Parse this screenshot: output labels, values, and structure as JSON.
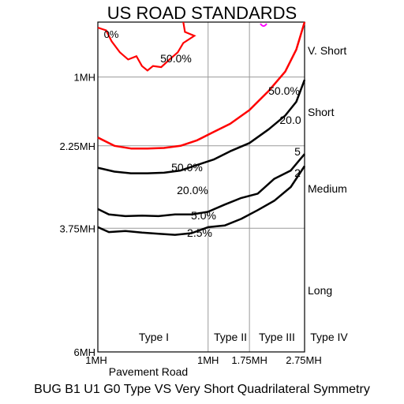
{
  "title": "US ROAD STANDARDS",
  "caption": "BUG B1 U1 G0 Type VS Very Short Quadrilateral Symmetry",
  "chart_data": {
    "type": "line",
    "xlabel": "Pavement   Road",
    "x_ticks": [
      "1MH",
      "1MH",
      "1.75MH",
      "2.75MH"
    ],
    "x_tick_values": [
      -1,
      1,
      1.75,
      2.75
    ],
    "y_ticks": [
      "1MH",
      "2.25MH",
      "3.75MH",
      "6MH"
    ],
    "y_tick_values": [
      1,
      2.25,
      3.75,
      6
    ],
    "xlim": [
      -1,
      2.75
    ],
    "ylim": [
      0,
      6
    ],
    "grid": true,
    "type_labels": [
      "Type I",
      "Type II",
      "Type III",
      "Type IV"
    ],
    "distance_labels": [
      "V. Short",
      "Short",
      "Medium",
      "Long"
    ],
    "contours": [
      {
        "label": "50.0%",
        "color": "#ff0000",
        "points": [
          [
            -1,
            2.1
          ],
          [
            -0.7,
            2.25
          ],
          [
            -0.4,
            2.3
          ],
          [
            -0.1,
            2.3
          ],
          [
            0.2,
            2.29
          ],
          [
            0.5,
            2.25
          ],
          [
            0.8,
            2.15
          ],
          [
            1.1,
            2.0
          ],
          [
            1.4,
            1.85
          ],
          [
            1.75,
            1.6
          ],
          [
            2.1,
            1.25
          ],
          [
            2.4,
            0.9
          ],
          [
            2.6,
            0.5
          ],
          [
            2.75,
            0
          ]
        ]
      },
      {
        "label": "20.0%",
        "color": "#000000",
        "points": [
          [
            -1,
            2.65
          ],
          [
            -0.7,
            2.72
          ],
          [
            -0.4,
            2.75
          ],
          [
            -0.1,
            2.75
          ],
          [
            0.2,
            2.74
          ],
          [
            0.5,
            2.7
          ],
          [
            0.8,
            2.6
          ],
          [
            1.1,
            2.5
          ],
          [
            1.4,
            2.35
          ],
          [
            1.75,
            2.2
          ],
          [
            2.1,
            1.95
          ],
          [
            2.4,
            1.7
          ],
          [
            2.6,
            1.45
          ],
          [
            2.75,
            1.05
          ]
        ]
      },
      {
        "label": "5.0%",
        "color": "#000000",
        "points": [
          [
            -1,
            3.4
          ],
          [
            -0.8,
            3.5
          ],
          [
            -0.5,
            3.53
          ],
          [
            -0.2,
            3.52
          ],
          [
            0.1,
            3.53
          ],
          [
            0.4,
            3.5
          ],
          [
            0.7,
            3.5
          ],
          [
            1.0,
            3.45
          ],
          [
            1.3,
            3.32
          ],
          [
            1.6,
            3.2
          ],
          [
            1.9,
            3.12
          ],
          [
            2.2,
            2.85
          ],
          [
            2.5,
            2.7
          ],
          [
            2.75,
            2.4
          ]
        ]
      },
      {
        "label": "2.5%",
        "color": "#000000",
        "points": [
          [
            -1,
            3.73
          ],
          [
            -0.8,
            3.82
          ],
          [
            -0.5,
            3.8
          ],
          [
            -0.2,
            3.83
          ],
          [
            0.1,
            3.85
          ],
          [
            0.4,
            3.87
          ],
          [
            0.7,
            3.84
          ],
          [
            1.0,
            3.73
          ],
          [
            1.3,
            3.7
          ],
          [
            1.6,
            3.58
          ],
          [
            1.9,
            3.42
          ],
          [
            2.2,
            3.25
          ],
          [
            2.5,
            3.0
          ],
          [
            2.75,
            2.62
          ]
        ]
      }
    ],
    "near_source_contour": {
      "label": "50.0%",
      "color": "#ff0000",
      "points": [
        [
          -1,
          0.1
        ],
        [
          -0.85,
          0.15
        ],
        [
          -0.75,
          0.35
        ],
        [
          -0.6,
          0.55
        ],
        [
          -0.45,
          0.68
        ],
        [
          -0.3,
          0.62
        ],
        [
          -0.2,
          0.8
        ],
        [
          -0.1,
          0.88
        ],
        [
          0.0,
          0.8
        ],
        [
          0.15,
          0.82
        ],
        [
          0.3,
          0.68
        ],
        [
          0.45,
          0.55
        ],
        [
          0.55,
          0.38
        ],
        [
          0.75,
          0.25
        ],
        [
          0.58,
          0.18
        ],
        [
          0.55,
          0.0
        ]
      ]
    },
    "origin_label": "0%",
    "side_labels": [
      "50.0%",
      "20.0",
      "5",
      "2"
    ]
  }
}
